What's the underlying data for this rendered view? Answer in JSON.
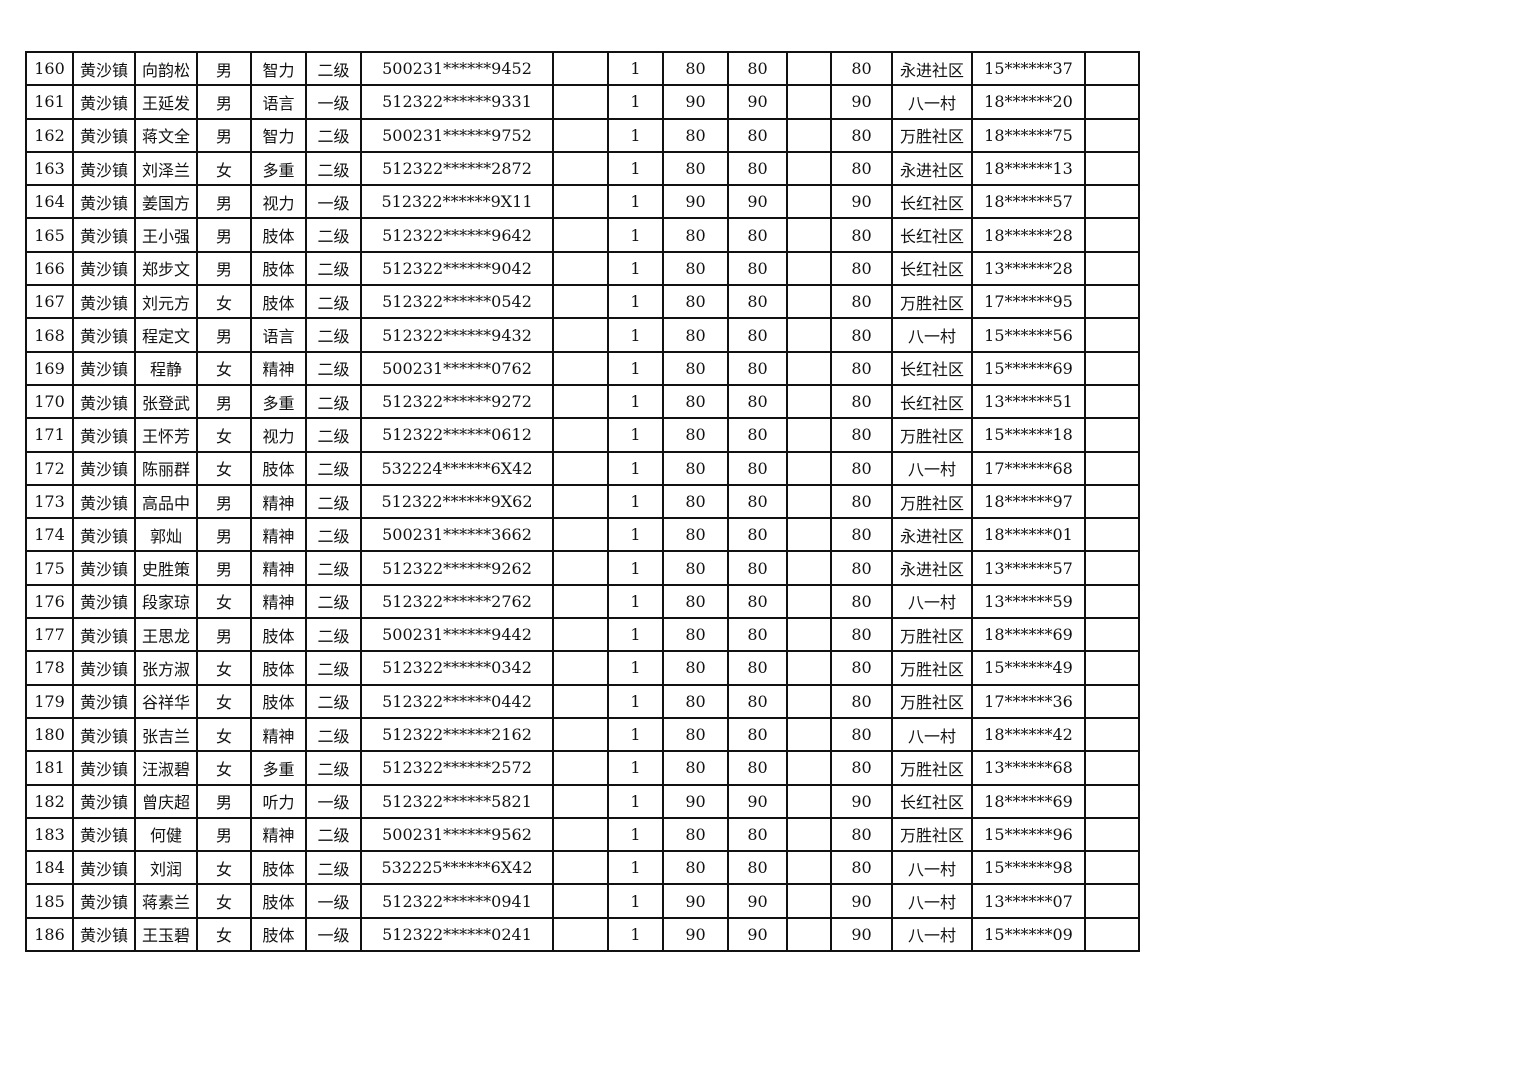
{
  "rows": [
    [
      "160",
      "黄沙镇",
      "向韵松",
      "男",
      "智力",
      "二级",
      "500231******9452",
      "",
      "1",
      "80",
      "80",
      "",
      "80",
      "永进社区",
      "15******37",
      ""
    ],
    [
      "161",
      "黄沙镇",
      "王延发",
      "男",
      "语言",
      "一级",
      "512322******9331",
      "",
      "1",
      "90",
      "90",
      "",
      "90",
      "八一村",
      "18******20",
      ""
    ],
    [
      "162",
      "黄沙镇",
      "蒋文全",
      "男",
      "智力",
      "二级",
      "500231******9752",
      "",
      "1",
      "80",
      "80",
      "",
      "80",
      "万胜社区",
      "18******75",
      ""
    ],
    [
      "163",
      "黄沙镇",
      "刘泽兰",
      "女",
      "多重",
      "二级",
      "512322******2872",
      "",
      "1",
      "80",
      "80",
      "",
      "80",
      "永进社区",
      "18******13",
      ""
    ],
    [
      "164",
      "黄沙镇",
      "姜国方",
      "男",
      "视力",
      "一级",
      "512322******9X11",
      "",
      "1",
      "90",
      "90",
      "",
      "90",
      "长红社区",
      "18******57",
      ""
    ],
    [
      "165",
      "黄沙镇",
      "王小强",
      "男",
      "肢体",
      "二级",
      "512322******9642",
      "",
      "1",
      "80",
      "80",
      "",
      "80",
      "长红社区",
      "18******28",
      ""
    ],
    [
      "166",
      "黄沙镇",
      "郑步文",
      "男",
      "肢体",
      "二级",
      "512322******9042",
      "",
      "1",
      "80",
      "80",
      "",
      "80",
      "长红社区",
      "13******28",
      ""
    ],
    [
      "167",
      "黄沙镇",
      "刘元方",
      "女",
      "肢体",
      "二级",
      "512322******0542",
      "",
      "1",
      "80",
      "80",
      "",
      "80",
      "万胜社区",
      "17******95",
      ""
    ],
    [
      "168",
      "黄沙镇",
      "程定文",
      "男",
      "语言",
      "二级",
      "512322******9432",
      "",
      "1",
      "80",
      "80",
      "",
      "80",
      "八一村",
      "15******56",
      ""
    ],
    [
      "169",
      "黄沙镇",
      "程静",
      "女",
      "精神",
      "二级",
      "500231******0762",
      "",
      "1",
      "80",
      "80",
      "",
      "80",
      "长红社区",
      "15******69",
      ""
    ],
    [
      "170",
      "黄沙镇",
      "张登武",
      "男",
      "多重",
      "二级",
      "512322******9272",
      "",
      "1",
      "80",
      "80",
      "",
      "80",
      "长红社区",
      "13******51",
      ""
    ],
    [
      "171",
      "黄沙镇",
      "王怀芳",
      "女",
      "视力",
      "二级",
      "512322******0612",
      "",
      "1",
      "80",
      "80",
      "",
      "80",
      "万胜社区",
      "15******18",
      ""
    ],
    [
      "172",
      "黄沙镇",
      "陈丽群",
      "女",
      "肢体",
      "二级",
      "532224******6X42",
      "",
      "1",
      "80",
      "80",
      "",
      "80",
      "八一村",
      "17******68",
      ""
    ],
    [
      "173",
      "黄沙镇",
      "高品中",
      "男",
      "精神",
      "二级",
      "512322******9X62",
      "",
      "1",
      "80",
      "80",
      "",
      "80",
      "万胜社区",
      "18******97",
      ""
    ],
    [
      "174",
      "黄沙镇",
      "郭灿",
      "男",
      "精神",
      "二级",
      "500231******3662",
      "",
      "1",
      "80",
      "80",
      "",
      "80",
      "永进社区",
      "18******01",
      ""
    ],
    [
      "175",
      "黄沙镇",
      "史胜策",
      "男",
      "精神",
      "二级",
      "512322******9262",
      "",
      "1",
      "80",
      "80",
      "",
      "80",
      "永进社区",
      "13******57",
      ""
    ],
    [
      "176",
      "黄沙镇",
      "段家琼",
      "女",
      "精神",
      "二级",
      "512322******2762",
      "",
      "1",
      "80",
      "80",
      "",
      "80",
      "八一村",
      "13******59",
      ""
    ],
    [
      "177",
      "黄沙镇",
      "王思龙",
      "男",
      "肢体",
      "二级",
      "500231******9442",
      "",
      "1",
      "80",
      "80",
      "",
      "80",
      "万胜社区",
      "18******69",
      ""
    ],
    [
      "178",
      "黄沙镇",
      "张方淑",
      "女",
      "肢体",
      "二级",
      "512322******0342",
      "",
      "1",
      "80",
      "80",
      "",
      "80",
      "万胜社区",
      "15******49",
      ""
    ],
    [
      "179",
      "黄沙镇",
      "谷祥华",
      "女",
      "肢体",
      "二级",
      "512322******0442",
      "",
      "1",
      "80",
      "80",
      "",
      "80",
      "万胜社区",
      "17******36",
      ""
    ],
    [
      "180",
      "黄沙镇",
      "张吉兰",
      "女",
      "精神",
      "二级",
      "512322******2162",
      "",
      "1",
      "80",
      "80",
      "",
      "80",
      "八一村",
      "18******42",
      ""
    ],
    [
      "181",
      "黄沙镇",
      "汪淑碧",
      "女",
      "多重",
      "二级",
      "512322******2572",
      "",
      "1",
      "80",
      "80",
      "",
      "80",
      "万胜社区",
      "13******68",
      ""
    ],
    [
      "182",
      "黄沙镇",
      "曾庆超",
      "男",
      "听力",
      "一级",
      "512322******5821",
      "",
      "1",
      "90",
      "90",
      "",
      "90",
      "长红社区",
      "18******69",
      ""
    ],
    [
      "183",
      "黄沙镇",
      "何健",
      "男",
      "精神",
      "二级",
      "500231******9562",
      "",
      "1",
      "80",
      "80",
      "",
      "80",
      "万胜社区",
      "15******96",
      ""
    ],
    [
      "184",
      "黄沙镇",
      "刘润",
      "女",
      "肢体",
      "二级",
      "532225******6X42",
      "",
      "1",
      "80",
      "80",
      "",
      "80",
      "八一村",
      "15******98",
      ""
    ],
    [
      "185",
      "黄沙镇",
      "蒋素兰",
      "女",
      "肢体",
      "一级",
      "512322******0941",
      "",
      "1",
      "90",
      "90",
      "",
      "90",
      "八一村",
      "13******07",
      ""
    ],
    [
      "186",
      "黄沙镇",
      "王玉碧",
      "女",
      "肢体",
      "一级",
      "512322******0241",
      "",
      "1",
      "90",
      "90",
      "",
      "90",
      "八一村",
      "15******09",
      ""
    ]
  ]
}
